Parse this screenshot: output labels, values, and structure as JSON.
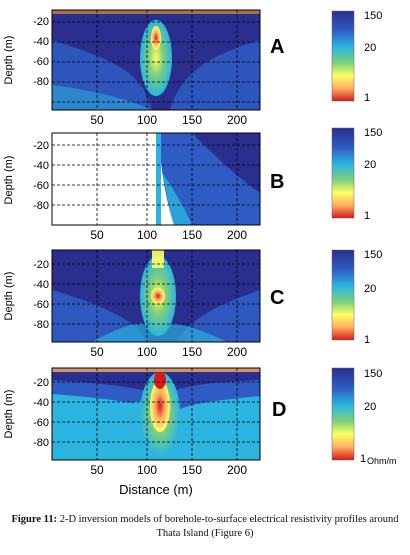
{
  "chart_data": [
    {
      "type": "heatmap",
      "panel_label": "A",
      "ylabel": "Depth (m)",
      "yticks": [
        -20,
        -40,
        -60,
        -80
      ],
      "xticks": [
        50,
        100,
        150,
        200
      ],
      "xlim": [
        0,
        220
      ],
      "ylim": [
        -100,
        -10
      ],
      "colorbar": {
        "ticks": [
          "150",
          "20",
          "1"
        ],
        "scale": "log",
        "range": [
          1,
          150
        ]
      },
      "grid": true
    },
    {
      "type": "heatmap",
      "panel_label": "B",
      "ylabel": "Depth (m)",
      "yticks": [
        -20,
        -40,
        -60,
        -80
      ],
      "xticks": [
        50,
        100,
        150,
        200
      ],
      "xlim": [
        0,
        220
      ],
      "ylim": [
        -100,
        -10
      ],
      "colorbar": {
        "ticks": [
          "150",
          "20",
          "1"
        ],
        "scale": "log",
        "range": [
          1,
          150
        ]
      },
      "grid": true
    },
    {
      "type": "heatmap",
      "panel_label": "C",
      "ylabel": "Depth (m)",
      "yticks": [
        -20,
        -40,
        -60,
        -80
      ],
      "xticks": [
        50,
        100,
        150,
        200
      ],
      "xlim": [
        0,
        220
      ],
      "ylim": [
        -100,
        -10
      ],
      "colorbar": {
        "ticks": [
          "150",
          "20",
          "1"
        ],
        "scale": "log",
        "range": [
          1,
          150
        ]
      },
      "grid": true
    },
    {
      "type": "heatmap",
      "panel_label": "D",
      "ylabel": "Depth (m)",
      "xlabel": "Distance (m)",
      "yticks": [
        -20,
        -40,
        -60,
        -80
      ],
      "xticks": [
        50,
        100,
        150,
        200
      ],
      "xlim": [
        0,
        220
      ],
      "ylim": [
        -100,
        -10
      ],
      "colorbar": {
        "ticks": [
          "150",
          "20",
          "1"
        ],
        "unit": "Ohm/m",
        "scale": "log",
        "range": [
          1,
          150
        ]
      },
      "grid": true
    }
  ],
  "colors": {
    "low": "#d7191c",
    "mid_low": "#fdae61",
    "mid": "#ffff66",
    "mid_high": "#2bb5e0",
    "high": "#2a2f8f"
  },
  "caption": {
    "label": "Figure 11:",
    "text": " 2-D inversion models of borehole-to-surface electrical resistivity profiles around Thata Island (Figure 6)"
  }
}
